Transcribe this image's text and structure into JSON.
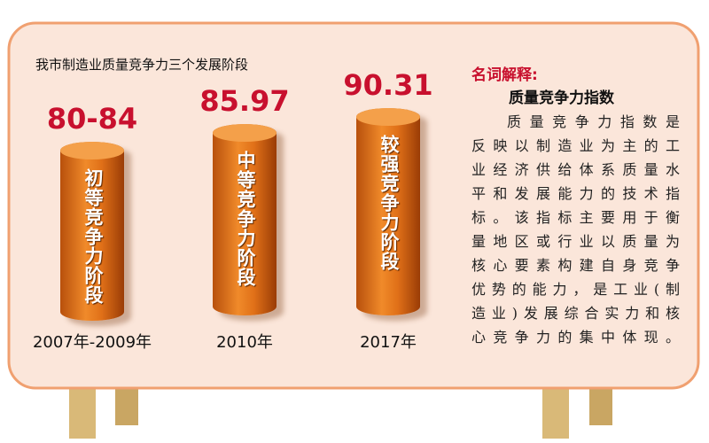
{
  "title": "我市制造业质量竞争力三个发展阶段",
  "stages": [
    {
      "value": "80-84",
      "label": "初等竞争力阶段",
      "year": "2007年-2009年"
    },
    {
      "value": "85.97",
      "label": "中等竞争力阶段",
      "year": "2010年"
    },
    {
      "value": "90.31",
      "label": "较强竞争力阶段",
      "year": "2017年"
    }
  ],
  "glossary": {
    "heading": "名词解释:",
    "term": "质量竞争力指数",
    "lines": [
      "质量竞争力指数是",
      "反映以制造业为主的工",
      "业经济供给体系质量水",
      "平和发展能力的技术指",
      "标。该指标主要用于衡",
      "量地区或行业以质量为",
      "核心要素构建自身竞争",
      "优势的能力，是工业(制",
      "造业)发展综合实力和核",
      "心竞争力的集中体现。"
    ]
  }
}
